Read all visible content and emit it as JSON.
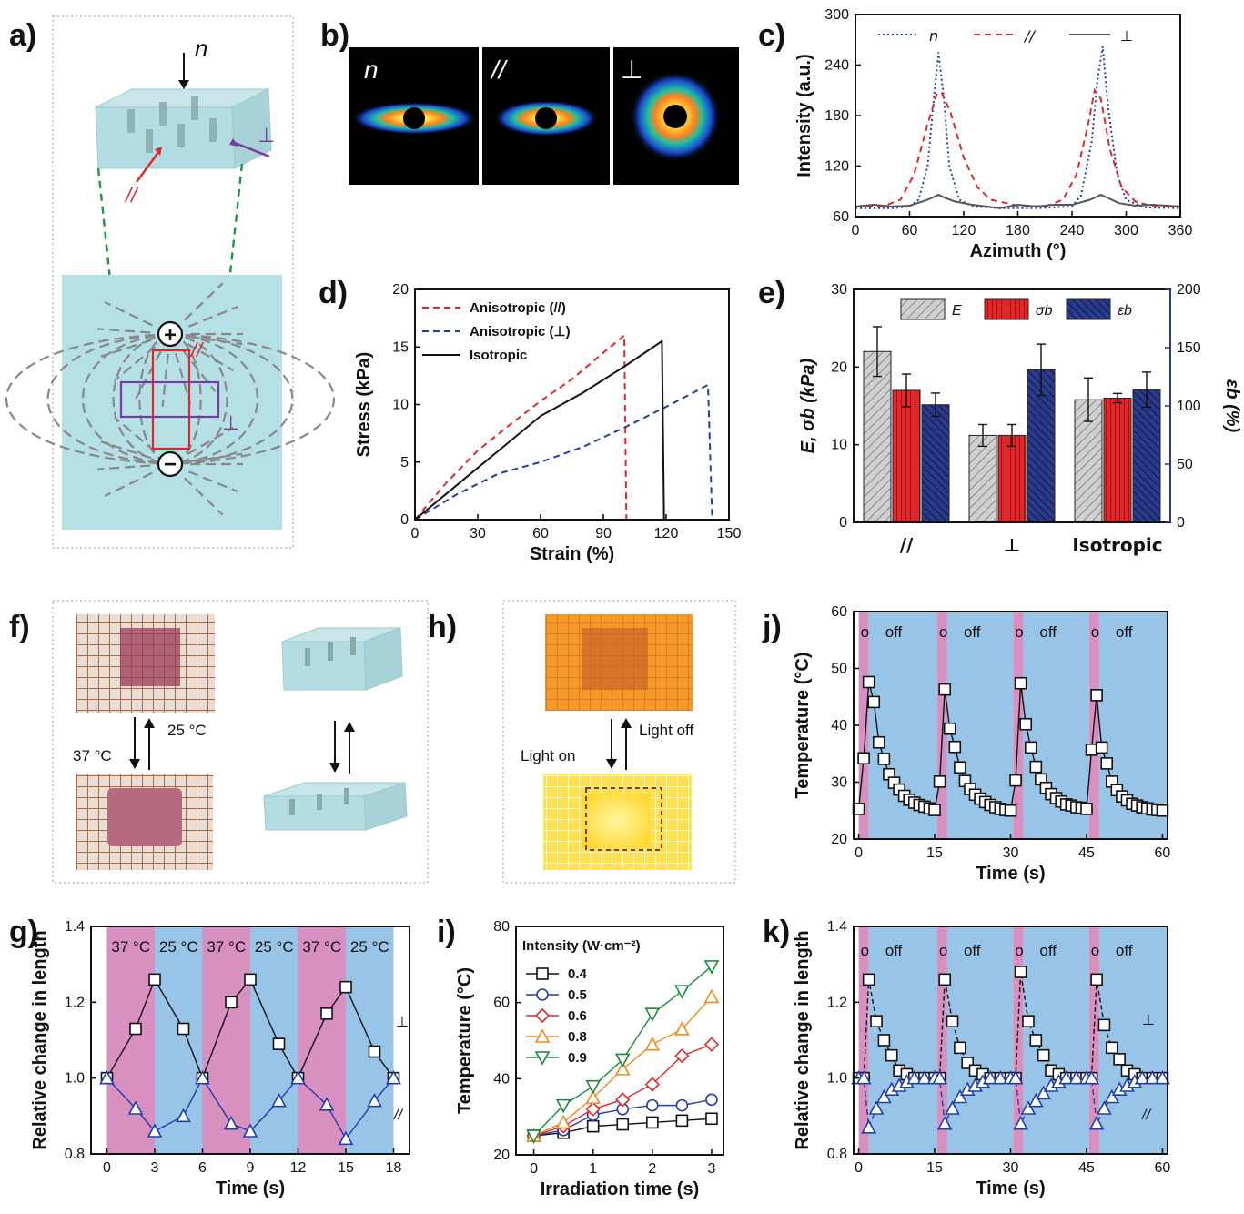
{
  "panel_labels": {
    "a": "a)",
    "b": "b)",
    "c": "c)",
    "d": "d)",
    "e": "e)",
    "f": "f)",
    "g": "g)",
    "h": "h)",
    "i": "i)",
    "j": "j)",
    "k": "k)"
  },
  "panel_a": {
    "n_label": "n",
    "par_label": "//",
    "perp_label": "⊥",
    "par_label2": "//",
    "perp_label2": "⊥",
    "plus": "+",
    "minus": "−"
  },
  "panel_b": {
    "labels": [
      "n",
      "//",
      "⊥"
    ]
  },
  "panel_f": {
    "t37": "37 °C",
    "t25": "25 °C"
  },
  "panel_h": {
    "light_on": "Light on",
    "light_off": "Light off"
  },
  "colors": {
    "blue": "#1f3fa8",
    "red": "#e3262a",
    "gray": "#555555",
    "green": "#1a8a3a",
    "orange": "#f08a1a",
    "navy": "#2a3a8a",
    "pink": "#d890c0",
    "lightblue": "#98c4e8",
    "hydrogel": "#b4e0e6"
  },
  "chart_data": [
    {
      "panel": "c",
      "type": "line",
      "xlabel": "Azimuth (°)",
      "ylabel": "Intensity (a.u.)",
      "xlim": [
        0,
        360
      ],
      "ylim": [
        60,
        300
      ],
      "xticks": [
        0,
        60,
        120,
        180,
        240,
        300,
        360
      ],
      "yticks": [
        60,
        120,
        180,
        240,
        300
      ],
      "ytick_labels": [
        "60",
        "120",
        "180",
        "240",
        "300"
      ],
      "legend_placement": "top",
      "series": [
        {
          "name": "n",
          "style": "dotted",
          "color": "#1f3fa8",
          "x": [
            0,
            40,
            60,
            70,
            80,
            86,
            92,
            98,
            104,
            115,
            130,
            160,
            200,
            240,
            250,
            262,
            268,
            274,
            280,
            290,
            300,
            320,
            360
          ],
          "y": [
            70,
            70,
            72,
            80,
            120,
            190,
            255,
            200,
            120,
            80,
            72,
            70,
            70,
            72,
            85,
            150,
            220,
            262,
            190,
            110,
            80,
            71,
            70
          ]
        },
        {
          "name": "//",
          "style": "dashed",
          "color": "#e3262a",
          "x": [
            0,
            30,
            50,
            65,
            80,
            90,
            95,
            105,
            120,
            135,
            150,
            180,
            210,
            230,
            245,
            258,
            265,
            272,
            282,
            295,
            310,
            330,
            360
          ],
          "y": [
            72,
            72,
            80,
            110,
            170,
            205,
            208,
            185,
            130,
            95,
            80,
            73,
            72,
            80,
            110,
            170,
            210,
            200,
            140,
            95,
            78,
            72,
            72
          ]
        },
        {
          "name": "⊥",
          "style": "solid",
          "color": "#555555",
          "x": [
            0,
            20,
            40,
            60,
            80,
            92,
            100,
            110,
            130,
            160,
            180,
            200,
            220,
            240,
            260,
            272,
            280,
            292,
            310,
            330,
            360
          ],
          "y": [
            72,
            74,
            72,
            73,
            80,
            86,
            82,
            78,
            74,
            70,
            74,
            72,
            74,
            74,
            80,
            86,
            82,
            76,
            73,
            74,
            72
          ]
        }
      ]
    },
    {
      "panel": "d",
      "type": "line",
      "xlabel": "Strain (%)",
      "ylabel": "Stress (kPa)",
      "xlim": [
        0,
        150
      ],
      "ylim": [
        0,
        20
      ],
      "xticks": [
        0,
        30,
        60,
        90,
        120,
        150
      ],
      "yticks": [
        0,
        5,
        10,
        15,
        20
      ],
      "ytick_labels": [
        "0",
        "5",
        "10",
        "15",
        "20"
      ],
      "legend_placement": "top-left",
      "series": [
        {
          "name": "Anisotropic (//)",
          "style": "dashed",
          "color": "#e3262a",
          "x": [
            0,
            15,
            30,
            45,
            60,
            75,
            90,
            100,
            101
          ],
          "y": [
            0,
            3.2,
            6.0,
            8.2,
            10.3,
            12.2,
            14.5,
            16.0,
            0
          ]
        },
        {
          "name": "Anisotropic (⊥)",
          "style": "dashed",
          "color": "#1f3fa8",
          "x": [
            0,
            20,
            40,
            60,
            80,
            100,
            120,
            140,
            142
          ],
          "y": [
            0,
            2.2,
            4.0,
            5.0,
            6.3,
            8.0,
            9.8,
            11.7,
            0
          ]
        },
        {
          "name": "Isotropic",
          "style": "solid",
          "color": "#111111",
          "x": [
            0,
            20,
            40,
            60,
            80,
            100,
            118,
            119
          ],
          "y": [
            0,
            3.0,
            6.0,
            9.0,
            11.0,
            13.3,
            15.5,
            0
          ]
        }
      ]
    },
    {
      "panel": "e",
      "type": "bar",
      "ylabel": "E, σb (kPa)",
      "ylabel_right": "εb (%)",
      "categories": [
        "//",
        "⊥",
        "Isotropic"
      ],
      "ylim": [
        0,
        30
      ],
      "ylim_right": [
        0,
        200
      ],
      "yticks": [
        0,
        10,
        20,
        30
      ],
      "ytick_labels": [
        "0",
        "10",
        "20",
        "30"
      ],
      "yticks_right": [
        0,
        50,
        100,
        150,
        200
      ],
      "ytick_labels_right": [
        "0",
        "50",
        "100",
        "150",
        "200"
      ],
      "legend_placement": "top",
      "series": [
        {
          "name": "E",
          "axis": "left",
          "color": "#c8c8c8",
          "values": [
            22,
            11.2,
            15.8
          ],
          "errors": [
            3.2,
            1.4,
            2.8
          ]
        },
        {
          "name": "σb",
          "axis": "left",
          "color": "#e3262a",
          "values": [
            17,
            11.2,
            16
          ],
          "errors": [
            2.1,
            1.4,
            0.6
          ]
        },
        {
          "name": "εb",
          "axis": "right",
          "color": "#2a3a8a",
          "values": [
            101,
            131,
            114
          ],
          "errors": [
            10,
            22,
            15
          ]
        }
      ]
    },
    {
      "panel": "g",
      "type": "line",
      "xlabel": "Time (s)",
      "ylabel": "Relative change in length",
      "xlim": [
        -1,
        19
      ],
      "ylim": [
        0.8,
        1.4
      ],
      "xticks": [
        0,
        3,
        6,
        9,
        12,
        15,
        18
      ],
      "yticks": [
        0.8,
        1.0,
        1.2,
        1.4
      ],
      "ytick_labels": [
        "0.8",
        "1.0",
        "1.2",
        "1.4"
      ],
      "bands": [
        {
          "from": 0,
          "to": 3,
          "state": "37 °C"
        },
        {
          "from": 3,
          "to": 6,
          "state": "25 °C"
        },
        {
          "from": 6,
          "to": 9,
          "state": "37 °C"
        },
        {
          "from": 9,
          "to": 12,
          "state": "25 °C"
        },
        {
          "from": 12,
          "to": 15,
          "state": "37 °C"
        },
        {
          "from": 15,
          "to": 18,
          "state": "25 °C"
        }
      ],
      "series": [
        {
          "name": "⊥",
          "marker": "square",
          "color": "#111111",
          "x": [
            0,
            1.8,
            3,
            4.8,
            6,
            7.8,
            9,
            10.8,
            12,
            13.8,
            15,
            16.8,
            18
          ],
          "y": [
            1.0,
            1.13,
            1.26,
            1.13,
            1.0,
            1.2,
            1.26,
            1.09,
            1.0,
            1.17,
            1.24,
            1.07,
            1.0
          ]
        },
        {
          "name": "//",
          "marker": "triangle",
          "color": "#1f3fa8",
          "x": [
            0,
            1.8,
            3,
            4.8,
            6,
            7.8,
            9,
            10.8,
            12,
            13.8,
            15,
            16.8,
            18
          ],
          "y": [
            1.0,
            0.92,
            0.86,
            0.9,
            1.0,
            0.88,
            0.86,
            0.94,
            1.0,
            0.93,
            0.84,
            0.94,
            1.0
          ]
        }
      ]
    },
    {
      "panel": "i",
      "type": "line",
      "xlabel": "Irradiation time (s)",
      "ylabel": "Temperature (°C)",
      "xlim": [
        -0.3,
        3.2
      ],
      "ylim": [
        20,
        80
      ],
      "xticks": [
        0,
        1,
        2,
        3
      ],
      "yticks": [
        20,
        40,
        60,
        80
      ],
      "ytick_labels": [
        "20",
        "40",
        "60",
        "80"
      ],
      "legend_title": "Intensity (W·cm⁻²)",
      "legend_placement": "top-left",
      "x": [
        0,
        0.5,
        1,
        1.5,
        2,
        2.5,
        3
      ],
      "series": [
        {
          "name": "0.4",
          "marker": "square",
          "color": "#111111",
          "y": [
            25,
            25.8,
            27.5,
            28,
            28.5,
            29,
            29.5
          ]
        },
        {
          "name": "0.5",
          "marker": "circle",
          "color": "#1f3fa8",
          "y": [
            25,
            26.5,
            30.5,
            32,
            33,
            33,
            34.5
          ]
        },
        {
          "name": "0.6",
          "marker": "diamond",
          "color": "#e3262a",
          "y": [
            25,
            27.5,
            32,
            34.5,
            38.5,
            46,
            49
          ]
        },
        {
          "name": "0.8",
          "marker": "triangle",
          "color": "#f08a1a",
          "y": [
            25,
            28.5,
            35,
            42.5,
            49,
            53,
            61.5
          ]
        },
        {
          "name": "0.9",
          "marker": "triangle-down",
          "color": "#1a8a3a",
          "y": [
            25,
            33,
            38,
            45,
            57,
            63,
            69.5
          ]
        }
      ]
    },
    {
      "panel": "j",
      "type": "line",
      "xlabel": "Time (s)",
      "ylabel": "Temperature (°C)",
      "xlim": [
        -1,
        61
      ],
      "ylim": [
        20,
        60
      ],
      "xticks": [
        0,
        15,
        30,
        45,
        60
      ],
      "yticks": [
        20,
        30,
        40,
        50,
        60
      ],
      "ytick_labels": [
        "20",
        "30",
        "40",
        "50",
        "60"
      ],
      "bands": [
        {
          "from": 0,
          "to": 2,
          "state": "on"
        },
        {
          "from": 2,
          "to": 15.5,
          "state": "off"
        },
        {
          "from": 15.5,
          "to": 17.5,
          "state": "on"
        },
        {
          "from": 17.5,
          "to": 30.5,
          "state": "off"
        },
        {
          "from": 30.5,
          "to": 32.5,
          "state": "on"
        },
        {
          "from": 32.5,
          "to": 45.5,
          "state": "off"
        },
        {
          "from": 45.5,
          "to": 47.5,
          "state": "on"
        },
        {
          "from": 47.5,
          "to": 61,
          "state": "off"
        }
      ],
      "series": [
        {
          "name": "",
          "marker": "square",
          "color": "#111111",
          "x": [
            0,
            1,
            2,
            3,
            4,
            5,
            6,
            7,
            8,
            9,
            10,
            11,
            12,
            13,
            14,
            15,
            16,
            17,
            18,
            19,
            20,
            21,
            22,
            23,
            24,
            25,
            26,
            27,
            28,
            29,
            30,
            31,
            32,
            33,
            34,
            35,
            36,
            37,
            38,
            39,
            40,
            41,
            42,
            43,
            44,
            45,
            46,
            47,
            48,
            49,
            50,
            51,
            52,
            53,
            54,
            55,
            56,
            57,
            58,
            59,
            60
          ],
          "y": [
            25.3,
            34.2,
            47.6,
            44.1,
            37.0,
            34.1,
            31.4,
            29.9,
            28.7,
            27.6,
            26.9,
            26.4,
            26.0,
            25.7,
            25.4,
            25.1,
            30.1,
            46.3,
            39.4,
            36.2,
            32.6,
            30.2,
            28.8,
            27.8,
            27.1,
            26.5,
            26.0,
            25.6,
            25.3,
            25.1,
            25.0,
            30.3,
            47.4,
            40.2,
            36.1,
            32.7,
            30.5,
            29.0,
            27.9,
            27.2,
            26.6,
            26.1,
            25.9,
            25.6,
            25.5,
            25.3,
            35.7,
            45.3,
            36.1,
            33.3,
            30.1,
            28.6,
            27.5,
            26.8,
            26.2,
            25.9,
            25.6,
            25.4,
            25.2,
            25.1,
            25.0
          ]
        }
      ]
    },
    {
      "panel": "k",
      "type": "line",
      "xlabel": "Time (s)",
      "ylabel": "Relative change in length",
      "xlim": [
        -1,
        61
      ],
      "ylim": [
        0.8,
        1.4
      ],
      "xticks": [
        0,
        15,
        30,
        45,
        60
      ],
      "yticks": [
        0.8,
        1.0,
        1.2,
        1.4
      ],
      "ytick_labels": [
        "0.8",
        "1.0",
        "1.2",
        "1.4"
      ],
      "bands": [
        {
          "from": 0,
          "to": 2,
          "state": "on"
        },
        {
          "from": 2,
          "to": 15.5,
          "state": "off"
        },
        {
          "from": 15.5,
          "to": 17.5,
          "state": "on"
        },
        {
          "from": 17.5,
          "to": 30.5,
          "state": "off"
        },
        {
          "from": 30.5,
          "to": 32.5,
          "state": "on"
        },
        {
          "from": 32.5,
          "to": 45.5,
          "state": "off"
        },
        {
          "from": 45.5,
          "to": 47.5,
          "state": "on"
        },
        {
          "from": 47.5,
          "to": 61,
          "state": "off"
        }
      ],
      "series": [
        {
          "name": "⊥",
          "marker": "square",
          "color": "#111111",
          "x": [
            0,
            1,
            2,
            3.5,
            5,
            6.5,
            8,
            9.5,
            11,
            13,
            15,
            16,
            17,
            18.5,
            20,
            21.5,
            23,
            24.5,
            26,
            28,
            30,
            31,
            32,
            33.5,
            35,
            36.5,
            38,
            39.5,
            41,
            43,
            45,
            46,
            47,
            48.5,
            50,
            51.5,
            53,
            54.5,
            56,
            58,
            60
          ],
          "y": [
            1.0,
            1.0,
            1.26,
            1.15,
            1.1,
            1.06,
            1.02,
            1.01,
            1.0,
            1.0,
            1.0,
            1.0,
            1.26,
            1.15,
            1.08,
            1.04,
            1.02,
            1.01,
            1.0,
            1.0,
            1.0,
            1.0,
            1.28,
            1.15,
            1.1,
            1.06,
            1.02,
            1.01,
            1.0,
            1.0,
            1.0,
            1.0,
            1.26,
            1.14,
            1.08,
            1.05,
            1.02,
            1.01,
            1.0,
            1.0,
            1.0
          ]
        },
        {
          "name": "//",
          "marker": "triangle",
          "color": "#1f3fa8",
          "x": [
            0,
            1,
            2,
            3.5,
            5,
            6.5,
            8,
            9.5,
            11,
            13,
            15,
            16,
            17,
            18.5,
            20,
            21.5,
            23,
            24.5,
            26,
            28,
            30,
            31,
            32,
            33.5,
            35,
            36.5,
            38,
            39.5,
            41,
            43,
            45,
            46,
            47,
            48.5,
            50,
            51.5,
            53,
            54.5,
            56,
            58,
            60
          ],
          "y": [
            1.0,
            1.0,
            0.87,
            0.92,
            0.95,
            0.97,
            0.98,
            0.99,
            1.0,
            1.0,
            1.0,
            1.0,
            0.88,
            0.92,
            0.95,
            0.97,
            0.98,
            0.99,
            1.0,
            1.0,
            1.0,
            1.0,
            0.88,
            0.92,
            0.94,
            0.96,
            0.98,
            0.99,
            1.0,
            1.0,
            1.0,
            1.0,
            0.88,
            0.92,
            0.95,
            0.97,
            0.98,
            0.99,
            1.0,
            1.0,
            1.0
          ]
        }
      ]
    }
  ]
}
